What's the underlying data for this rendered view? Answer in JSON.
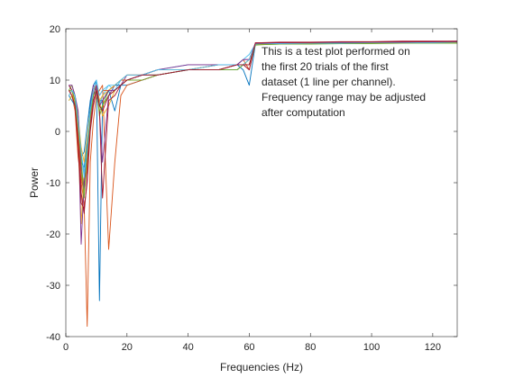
{
  "chart_data": {
    "type": "line",
    "xlabel": "Frequencies (Hz)",
    "ylabel": "Power",
    "xlim": [
      0,
      128
    ],
    "ylim": [
      -40,
      20
    ],
    "xticks": [
      0,
      20,
      40,
      60,
      80,
      100,
      120
    ],
    "yticks": [
      -40,
      -30,
      -20,
      -10,
      0,
      10,
      20
    ],
    "annotation": [
      "This is a test plot performed on",
      "the first 20 trials of the first",
      "dataset (1 line per channel).",
      "Frequency range may be adjusted",
      "after computation"
    ],
    "grid": false,
    "colors": [
      "#0072BD",
      "#D95319",
      "#EDB120",
      "#7E2F8E",
      "#77AC30",
      "#4DBEEE",
      "#A2142F"
    ],
    "series": [
      {
        "color": "#0072BD",
        "x": [
          1,
          2,
          3,
          4,
          5,
          6,
          7,
          8,
          9,
          10,
          11,
          12,
          14,
          16,
          18,
          20,
          25,
          30,
          40,
          50,
          56,
          58,
          60,
          62,
          64,
          70,
          80,
          90,
          100,
          110,
          120,
          128
        ],
        "y": [
          9,
          8,
          6,
          0,
          -5,
          -4,
          1,
          6,
          9,
          10,
          -33,
          6,
          8,
          4,
          9,
          9,
          10,
          11,
          12,
          12,
          13,
          12,
          9,
          17,
          17,
          17.1,
          17.2,
          17.2,
          17.3,
          17.3,
          17.3,
          17.4
        ]
      },
      {
        "color": "#D95319",
        "x": [
          1,
          2,
          3,
          4,
          5,
          6,
          7,
          8,
          9,
          10,
          11,
          12,
          14,
          16,
          18,
          20,
          25,
          30,
          40,
          50,
          56,
          58,
          60,
          62,
          64,
          70,
          80,
          90,
          100,
          110,
          120,
          128
        ],
        "y": [
          8,
          7,
          4,
          -5,
          -10,
          -14,
          -38,
          -6,
          2,
          7,
          8,
          9,
          -23,
          -6,
          7,
          9,
          10,
          11,
          12,
          13,
          13,
          14,
          12,
          17,
          17.1,
          17.2,
          17.3,
          17.3,
          17.4,
          17.4,
          17.5,
          17.5
        ]
      },
      {
        "color": "#EDB120",
        "x": [
          1,
          2,
          3,
          4,
          5,
          6,
          7,
          8,
          9,
          10,
          11,
          12,
          14,
          16,
          18,
          20,
          25,
          30,
          40,
          50,
          56,
          58,
          60,
          62,
          64,
          70,
          80,
          90,
          100,
          110,
          120,
          128
        ],
        "y": [
          7,
          8,
          5,
          -2,
          -18,
          -8,
          -2,
          4,
          8,
          9,
          6,
          3,
          5,
          8,
          9,
          10,
          11,
          11,
          12,
          12,
          13,
          13,
          14,
          17,
          17,
          17.1,
          17.2,
          17.3,
          17.3,
          17.4,
          17.4,
          17.5
        ]
      },
      {
        "color": "#7E2F8E",
        "x": [
          1,
          2,
          3,
          4,
          5,
          6,
          7,
          8,
          9,
          10,
          11,
          12,
          14,
          16,
          18,
          20,
          25,
          30,
          40,
          50,
          56,
          58,
          60,
          62,
          64,
          70,
          80,
          90,
          100,
          110,
          120,
          128
        ],
        "y": [
          9,
          8,
          7,
          3,
          -22,
          -10,
          -4,
          5,
          9,
          8,
          4,
          -6,
          7,
          9,
          9,
          11,
          11,
          12,
          12,
          13,
          13,
          14,
          14,
          17.2,
          17.2,
          17.3,
          17.3,
          17.4,
          17.4,
          17.5,
          17.5,
          17.6
        ]
      },
      {
        "color": "#77AC30",
        "x": [
          1,
          2,
          3,
          4,
          5,
          6,
          7,
          8,
          9,
          10,
          11,
          12,
          14,
          16,
          18,
          20,
          25,
          30,
          40,
          50,
          56,
          58,
          60,
          62,
          64,
          70,
          80,
          90,
          100,
          110,
          120,
          128
        ],
        "y": [
          8,
          9,
          7,
          2,
          -8,
          -12,
          -6,
          3,
          7,
          9,
          3,
          5,
          8,
          9,
          10,
          10,
          11,
          12,
          12,
          12,
          12,
          13,
          14,
          16.8,
          16.9,
          17,
          17.1,
          17.1,
          17.2,
          17.2,
          17.3,
          17.3
        ]
      },
      {
        "color": "#4DBEEE",
        "x": [
          1,
          2,
          3,
          4,
          5,
          6,
          7,
          8,
          9,
          10,
          11,
          12,
          14,
          16,
          18,
          20,
          25,
          30,
          40,
          50,
          56,
          58,
          60,
          62,
          64,
          70,
          80,
          90,
          100,
          110,
          120,
          128
        ],
        "y": [
          6,
          7,
          6,
          1,
          -4,
          -9,
          -3,
          4,
          8,
          10,
          5,
          7,
          9,
          8,
          10,
          10,
          11,
          12,
          13,
          13,
          13,
          14,
          15,
          17,
          17,
          17.1,
          17.1,
          17.2,
          17.2,
          17.3,
          17.3,
          17.3
        ]
      },
      {
        "color": "#A2142F",
        "x": [
          1,
          2,
          3,
          4,
          5,
          6,
          7,
          8,
          9,
          10,
          11,
          12,
          14,
          16,
          18,
          20,
          25,
          30,
          40,
          50,
          56,
          58,
          60,
          62,
          64,
          70,
          80,
          90,
          100,
          110,
          120,
          128
        ],
        "y": [
          9,
          8,
          6,
          -1,
          -12,
          -16,
          -9,
          1,
          6,
          8,
          4,
          -13,
          6,
          7,
          9,
          10,
          10,
          11,
          12,
          12,
          13,
          13,
          12,
          17.3,
          17.3,
          17.4,
          17.4,
          17.5,
          17.5,
          17.6,
          17.6,
          17.6
        ]
      },
      {
        "color": "#0072BD",
        "x": [
          1,
          2,
          3,
          4,
          5,
          6,
          7,
          8,
          9,
          10,
          11,
          12,
          14,
          16,
          18,
          20,
          25,
          30,
          40,
          50,
          56,
          58,
          60,
          62,
          64,
          70,
          80,
          90,
          100,
          110,
          120,
          128
        ],
        "y": [
          7,
          6,
          5,
          2,
          -6,
          -7,
          -2,
          5,
          8,
          9,
          6,
          6,
          8,
          9,
          9,
          10,
          11,
          11,
          12,
          12,
          12,
          13,
          13,
          16.9,
          17,
          17,
          17.1,
          17.2,
          17.2,
          17.3,
          17.3,
          17.3
        ]
      },
      {
        "color": "#D95319",
        "x": [
          1,
          2,
          3,
          4,
          5,
          6,
          7,
          8,
          9,
          10,
          11,
          12,
          14,
          16,
          18,
          20,
          25,
          30,
          40,
          50,
          56,
          58,
          60,
          62,
          64,
          70,
          80,
          90,
          100,
          110,
          120,
          128
        ],
        "y": [
          8,
          7,
          5,
          0,
          -9,
          -12,
          -7,
          2,
          7,
          9,
          7,
          8,
          8,
          9,
          10,
          10,
          11,
          12,
          12,
          13,
          13,
          13,
          13,
          17.1,
          17.1,
          17.2,
          17.2,
          17.3,
          17.3,
          17.4,
          17.4,
          17.4
        ]
      },
      {
        "color": "#EDB120",
        "x": [
          1,
          2,
          3,
          4,
          5,
          6,
          7,
          8,
          9,
          10,
          11,
          12,
          14,
          16,
          18,
          20,
          25,
          30,
          40,
          50,
          56,
          58,
          60,
          62,
          64,
          70,
          80,
          90,
          100,
          110,
          120,
          128
        ],
        "y": [
          6,
          7,
          6,
          3,
          -3,
          -6,
          -1,
          4,
          8,
          9,
          6,
          7,
          8,
          9,
          10,
          11,
          11,
          12,
          12,
          13,
          13,
          13,
          14,
          17,
          17,
          17.1,
          17.1,
          17.2,
          17.2,
          17.2,
          17.3,
          17.3
        ]
      },
      {
        "color": "#7E2F8E",
        "x": [
          1,
          2,
          3,
          4,
          5,
          6,
          7,
          8,
          9,
          10,
          11,
          12,
          14,
          16,
          18,
          20,
          25,
          30,
          40,
          50,
          56,
          58,
          60,
          62,
          64,
          70,
          80,
          90,
          100,
          110,
          120,
          128
        ],
        "y": [
          9,
          9,
          7,
          4,
          -7,
          -11,
          -5,
          3,
          7,
          9,
          5,
          6,
          8,
          8,
          9,
          10,
          11,
          12,
          13,
          13,
          13,
          14,
          14,
          17.2,
          17.2,
          17.3,
          17.3,
          17.3,
          17.4,
          17.4,
          17.4,
          17.5
        ]
      },
      {
        "color": "#77AC30",
        "x": [
          1,
          2,
          3,
          4,
          5,
          6,
          7,
          8,
          9,
          10,
          11,
          12,
          14,
          16,
          18,
          20,
          25,
          30,
          40,
          50,
          56,
          58,
          60,
          62,
          64,
          70,
          80,
          90,
          100,
          110,
          120,
          128
        ],
        "y": [
          8,
          8,
          6,
          1,
          -5,
          -13,
          -4,
          3,
          7,
          8,
          4,
          5,
          7,
          8,
          9,
          10,
          10,
          11,
          12,
          12,
          12,
          13,
          13,
          16.9,
          16.9,
          17,
          17,
          17.1,
          17.1,
          17.2,
          17.2,
          17.2
        ]
      },
      {
        "color": "#4DBEEE",
        "x": [
          1,
          2,
          3,
          4,
          5,
          6,
          7,
          8,
          9,
          10,
          11,
          12,
          14,
          16,
          18,
          20,
          25,
          30,
          40,
          50,
          56,
          58,
          60,
          62,
          64,
          70,
          80,
          90,
          100,
          110,
          120,
          128
        ],
        "y": [
          7,
          8,
          7,
          2,
          -4,
          -8,
          -3,
          4,
          8,
          10,
          7,
          8,
          9,
          9,
          10,
          11,
          11,
          12,
          12,
          13,
          13,
          13,
          14,
          17,
          17.1,
          17.1,
          17.2,
          17.2,
          17.3,
          17.3,
          17.3,
          17.4
        ]
      },
      {
        "color": "#A2142F",
        "x": [
          1,
          2,
          3,
          4,
          5,
          6,
          7,
          8,
          9,
          10,
          11,
          12,
          14,
          16,
          18,
          20,
          25,
          30,
          40,
          50,
          56,
          58,
          60,
          62,
          64,
          70,
          80,
          90,
          100,
          110,
          120,
          128
        ],
        "y": [
          8,
          7,
          5,
          -3,
          -14,
          -15,
          -10,
          0,
          5,
          8,
          5,
          4,
          7,
          8,
          9,
          10,
          11,
          11,
          12,
          12,
          13,
          13,
          13,
          17.2,
          17.2,
          17.3,
          17.3,
          17.4,
          17.4,
          17.4,
          17.5,
          17.5
        ]
      }
    ]
  }
}
